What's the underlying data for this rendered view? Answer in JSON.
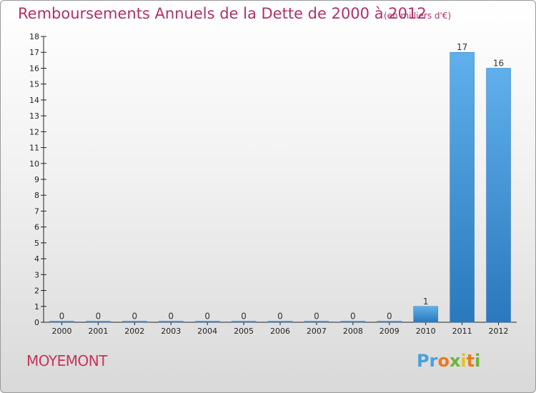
{
  "chart_data": {
    "type": "bar",
    "title": "Remboursements Annuels de la Dette de 2000 à 2012",
    "subtitle": "(en milliers d'€)",
    "categories": [
      "2000",
      "2001",
      "2002",
      "2003",
      "2004",
      "2005",
      "2006",
      "2007",
      "2008",
      "2009",
      "2010",
      "2011",
      "2012"
    ],
    "values": [
      0,
      0,
      0,
      0,
      0,
      0,
      0,
      0,
      0,
      0,
      1,
      17,
      16
    ],
    "data_labels": [
      "0",
      "0",
      "0",
      "0",
      "0",
      "0",
      "0",
      "0",
      "0",
      "0",
      "1",
      "17",
      "16"
    ],
    "xlabel": "",
    "ylabel": "",
    "ylim": [
      0,
      18
    ],
    "yticks": [
      "0",
      "1",
      "2",
      "3",
      "4",
      "5",
      "6",
      "7",
      "8",
      "9",
      "10",
      "11",
      "12",
      "13",
      "14",
      "15",
      "16",
      "17",
      "18"
    ],
    "grid": false,
    "legend": "none",
    "bar_color": "#4a9fe0"
  },
  "footer": {
    "place_name": "MOYEMONT",
    "logo_letters": [
      "P",
      "r",
      "o",
      "x",
      "i",
      "t",
      "i"
    ],
    "logo_colors": [
      "#4aa0dc",
      "#4aa0dc",
      "#e87a1e",
      "#6ab43a",
      "#e4c21c",
      "#e87a1e",
      "#6ab43a"
    ]
  }
}
